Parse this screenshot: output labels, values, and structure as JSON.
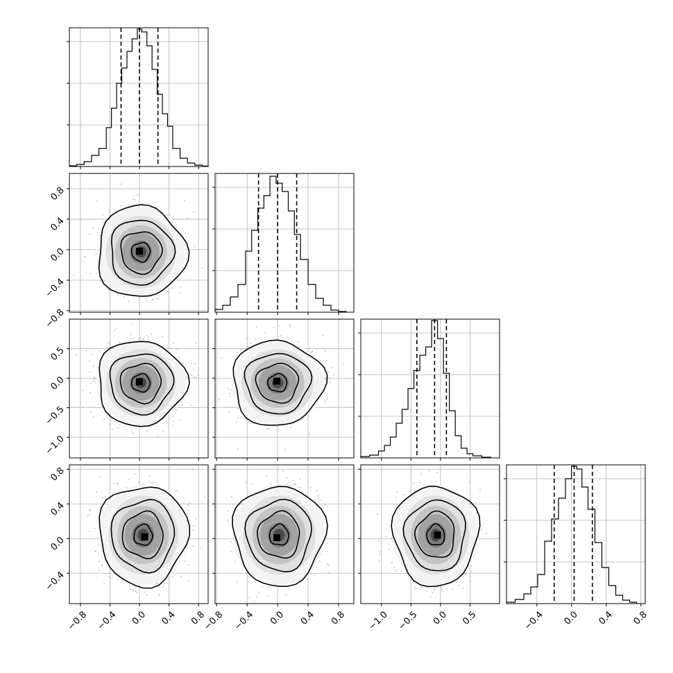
{
  "chart_data": {
    "type": "corner",
    "colors": {
      "line": "#000000",
      "grid": "#b0b0b0",
      "scatter": "#888888",
      "frame": "#000000"
    },
    "grid": true,
    "quantile_style": "dashed",
    "params": [
      {
        "range": [
          -0.95,
          0.93
        ],
        "ticks": [
          -0.8,
          -0.4,
          0.0,
          0.4,
          0.8
        ],
        "tick_labels": [
          "−0.8",
          "−0.4",
          "0.0",
          "0.4",
          "0.8"
        ],
        "quantiles": [
          -0.25,
          0.0,
          0.25
        ],
        "hist": [
          {
            "x0": -0.95,
            "x1": -0.85,
            "h": 0.005
          },
          {
            "x0": -0.85,
            "x1": -0.75,
            "h": 0.015
          },
          {
            "x0": -0.75,
            "x1": -0.65,
            "h": 0.035
          },
          {
            "x0": -0.65,
            "x1": -0.55,
            "h": 0.08
          },
          {
            "x0": -0.55,
            "x1": -0.45,
            "h": 0.13
          },
          {
            "x0": -0.45,
            "x1": -0.38,
            "h": 0.28
          },
          {
            "x0": -0.38,
            "x1": -0.31,
            "h": 0.42
          },
          {
            "x0": -0.31,
            "x1": -0.24,
            "h": 0.6
          },
          {
            "x0": -0.24,
            "x1": -0.17,
            "h": 0.71
          },
          {
            "x0": -0.17,
            "x1": -0.1,
            "h": 0.83
          },
          {
            "x0": -0.1,
            "x1": -0.03,
            "h": 0.92
          },
          {
            "x0": -0.03,
            "x1": 0.03,
            "h": 0.99
          },
          {
            "x0": 0.03,
            "x1": 0.1,
            "h": 0.97
          },
          {
            "x0": 0.1,
            "x1": 0.17,
            "h": 0.87
          },
          {
            "x0": 0.17,
            "x1": 0.24,
            "h": 0.7
          },
          {
            "x0": 0.24,
            "x1": 0.31,
            "h": 0.52
          },
          {
            "x0": 0.31,
            "x1": 0.38,
            "h": 0.38
          },
          {
            "x0": 0.38,
            "x1": 0.45,
            "h": 0.29
          },
          {
            "x0": 0.45,
            "x1": 0.55,
            "h": 0.13
          },
          {
            "x0": 0.55,
            "x1": 0.65,
            "h": 0.06
          },
          {
            "x0": 0.65,
            "x1": 0.75,
            "h": 0.025
          },
          {
            "x0": 0.75,
            "x1": 0.85,
            "h": 0.01
          },
          {
            "x0": 0.85,
            "x1": 0.93,
            "h": 0.003
          }
        ]
      },
      {
        "range": [
          -0.82,
          1.0
        ],
        "ticks": [
          -0.8,
          -0.4,
          0.0,
          0.4,
          0.8
        ],
        "tick_labels": [
          "−0.8",
          "−0.4",
          "0.0",
          "0.4",
          "0.8"
        ],
        "quantiles": [
          -0.25,
          0.0,
          0.25
        ],
        "hist": [
          {
            "x0": -0.82,
            "x1": -0.72,
            "h": 0.02
          },
          {
            "x0": -0.72,
            "x1": -0.62,
            "h": 0.05
          },
          {
            "x0": -0.62,
            "x1": -0.52,
            "h": 0.11
          },
          {
            "x0": -0.52,
            "x1": -0.42,
            "h": 0.2
          },
          {
            "x0": -0.42,
            "x1": -0.34,
            "h": 0.44
          },
          {
            "x0": -0.34,
            "x1": -0.26,
            "h": 0.59
          },
          {
            "x0": -0.26,
            "x1": -0.18,
            "h": 0.75
          },
          {
            "x0": -0.18,
            "x1": -0.1,
            "h": 0.84
          },
          {
            "x0": -0.1,
            "x1": -0.02,
            "h": 0.98
          },
          {
            "x0": -0.02,
            "x1": 0.06,
            "h": 0.93
          },
          {
            "x0": 0.06,
            "x1": 0.14,
            "h": 0.87
          },
          {
            "x0": 0.14,
            "x1": 0.22,
            "h": 0.73
          },
          {
            "x0": 0.22,
            "x1": 0.3,
            "h": 0.56
          },
          {
            "x0": 0.3,
            "x1": 0.4,
            "h": 0.38
          },
          {
            "x0": 0.4,
            "x1": 0.5,
            "h": 0.2
          },
          {
            "x0": 0.5,
            "x1": 0.6,
            "h": 0.1
          },
          {
            "x0": 0.6,
            "x1": 0.7,
            "h": 0.05
          },
          {
            "x0": 0.7,
            "x1": 0.8,
            "h": 0.015
          },
          {
            "x0": 0.8,
            "x1": 0.9,
            "h": 0.005
          }
        ]
      },
      {
        "range": [
          -1.35,
          1.0
        ],
        "ticks": [
          -1.0,
          -0.5,
          0.0,
          0.5
        ],
        "tick_labels": [
          "−1.0",
          "−0.5",
          "0.0",
          "0.5"
        ],
        "quantiles": [
          -0.4,
          -0.1,
          0.1
        ],
        "hist": [
          {
            "x0": -1.35,
            "x1": -1.2,
            "h": 0.01
          },
          {
            "x0": -1.2,
            "x1": -1.05,
            "h": 0.02
          },
          {
            "x0": -1.05,
            "x1": -0.95,
            "h": 0.05
          },
          {
            "x0": -0.95,
            "x1": -0.85,
            "h": 0.09
          },
          {
            "x0": -0.85,
            "x1": -0.75,
            "h": 0.15
          },
          {
            "x0": -0.75,
            "x1": -0.65,
            "h": 0.25
          },
          {
            "x0": -0.65,
            "x1": -0.55,
            "h": 0.35
          },
          {
            "x0": -0.55,
            "x1": -0.45,
            "h": 0.5
          },
          {
            "x0": -0.45,
            "x1": -0.35,
            "h": 0.63
          },
          {
            "x0": -0.35,
            "x1": -0.25,
            "h": 0.74
          },
          {
            "x0": -0.25,
            "x1": -0.15,
            "h": 0.8
          },
          {
            "x0": -0.15,
            "x1": -0.05,
            "h": 0.99
          },
          {
            "x0": -0.05,
            "x1": 0.05,
            "h": 0.86
          },
          {
            "x0": 0.05,
            "x1": 0.15,
            "h": 0.61
          },
          {
            "x0": 0.15,
            "x1": 0.25,
            "h": 0.34
          },
          {
            "x0": 0.25,
            "x1": 0.35,
            "h": 0.16
          },
          {
            "x0": 0.35,
            "x1": 0.45,
            "h": 0.07
          },
          {
            "x0": 0.45,
            "x1": 0.55,
            "h": 0.03
          },
          {
            "x0": 0.55,
            "x1": 0.7,
            "h": 0.015
          },
          {
            "x0": 0.7,
            "x1": 0.85,
            "h": 0.005
          }
        ]
      },
      {
        "range": [
          -0.75,
          0.85
        ],
        "ticks": [
          -0.4,
          0.0,
          0.4,
          0.8
        ],
        "tick_labels": [
          "−0.4",
          "0.0",
          "0.4",
          "0.8"
        ],
        "quantiles": [
          -0.2,
          0.03,
          0.24
        ],
        "hist": [
          {
            "x0": -0.75,
            "x1": -0.65,
            "h": 0.01
          },
          {
            "x0": -0.65,
            "x1": -0.55,
            "h": 0.03
          },
          {
            "x0": -0.55,
            "x1": -0.47,
            "h": 0.07
          },
          {
            "x0": -0.47,
            "x1": -0.39,
            "h": 0.12
          },
          {
            "x0": -0.39,
            "x1": -0.31,
            "h": 0.21
          },
          {
            "x0": -0.31,
            "x1": -0.23,
            "h": 0.45
          },
          {
            "x0": -0.23,
            "x1": -0.15,
            "h": 0.61
          },
          {
            "x0": -0.15,
            "x1": -0.07,
            "h": 0.76
          },
          {
            "x0": -0.07,
            "x1": 0.0,
            "h": 0.9
          },
          {
            "x0": 0.0,
            "x1": 0.06,
            "h": 0.99
          },
          {
            "x0": 0.06,
            "x1": 0.12,
            "h": 0.97
          },
          {
            "x0": 0.12,
            "x1": 0.19,
            "h": 0.84
          },
          {
            "x0": 0.19,
            "x1": 0.27,
            "h": 0.68
          },
          {
            "x0": 0.27,
            "x1": 0.35,
            "h": 0.44
          },
          {
            "x0": 0.35,
            "x1": 0.43,
            "h": 0.26
          },
          {
            "x0": 0.43,
            "x1": 0.51,
            "h": 0.13
          },
          {
            "x0": 0.51,
            "x1": 0.59,
            "h": 0.06
          },
          {
            "x0": 0.59,
            "x1": 0.67,
            "h": 0.025
          },
          {
            "x0": 0.67,
            "x1": 0.75,
            "h": 0.01
          }
        ]
      }
    ],
    "pairs": [
      {
        "row": 1,
        "col": 0,
        "center": [
          0.02,
          -0.03
        ],
        "sd": [
          0.25,
          0.25
        ],
        "peak": [
          0.0,
          -0.02
        ]
      },
      {
        "row": 2,
        "col": 0,
        "center": [
          0.02,
          -0.08
        ],
        "sd": [
          0.25,
          0.3
        ],
        "peak": [
          0.0,
          -0.06
        ]
      },
      {
        "row": 2,
        "col": 1,
        "center": [
          0.0,
          -0.08
        ],
        "sd": [
          0.25,
          0.3
        ],
        "peak": [
          -0.01,
          -0.05
        ]
      },
      {
        "row": 3,
        "col": 0,
        "center": [
          0.05,
          0.04
        ],
        "sd": [
          0.25,
          0.24
        ],
        "peak": [
          0.07,
          0.02
        ]
      },
      {
        "row": 3,
        "col": 1,
        "center": [
          0.02,
          0.04
        ],
        "sd": [
          0.25,
          0.24
        ],
        "peak": [
          -0.01,
          0.01
        ]
      },
      {
        "row": 3,
        "col": 2,
        "center": [
          -0.08,
          0.04
        ],
        "sd": [
          0.3,
          0.24
        ],
        "peak": [
          -0.05,
          0.04
        ]
      }
    ]
  }
}
